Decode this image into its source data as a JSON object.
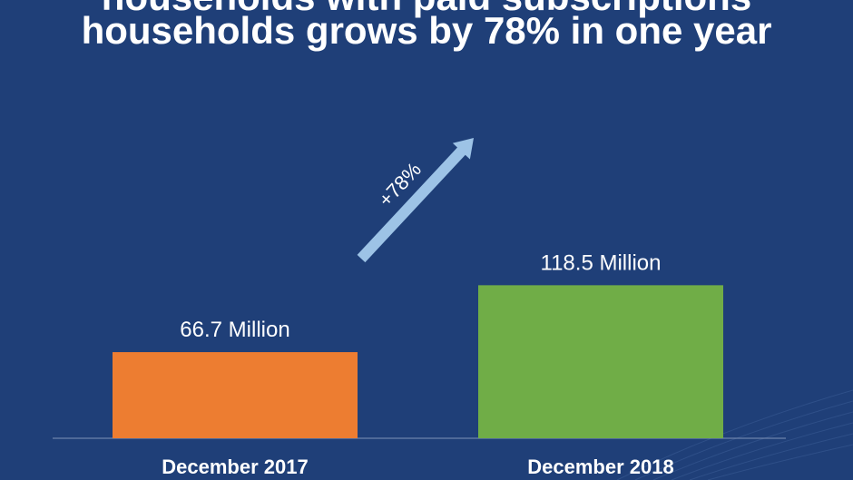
{
  "title": {
    "line1": "households with paid subscriptions",
    "line2": "households grows by 78% in one year"
  },
  "colors": {
    "background": "#1f3f78",
    "bar_2017": "#ed7d31",
    "bar_2018": "#70ad47",
    "arrow": "#9dc3e6",
    "text": "#ffffff"
  },
  "chart_data": {
    "type": "bar",
    "title": "households grows by 78% in one year",
    "categories": [
      "December 2017",
      "December 2018"
    ],
    "values": [
      66.7,
      118.5
    ],
    "value_labels": [
      "66.7 Million",
      "118.5 Million"
    ],
    "bar_colors": [
      "#ed7d31",
      "#70ad47"
    ],
    "units": "Million",
    "ylim": [
      0,
      130
    ],
    "grid": false,
    "annotations": [
      {
        "text": "+78%",
        "type": "arrow",
        "from": "December 2017",
        "to": "December 2018"
      }
    ]
  }
}
